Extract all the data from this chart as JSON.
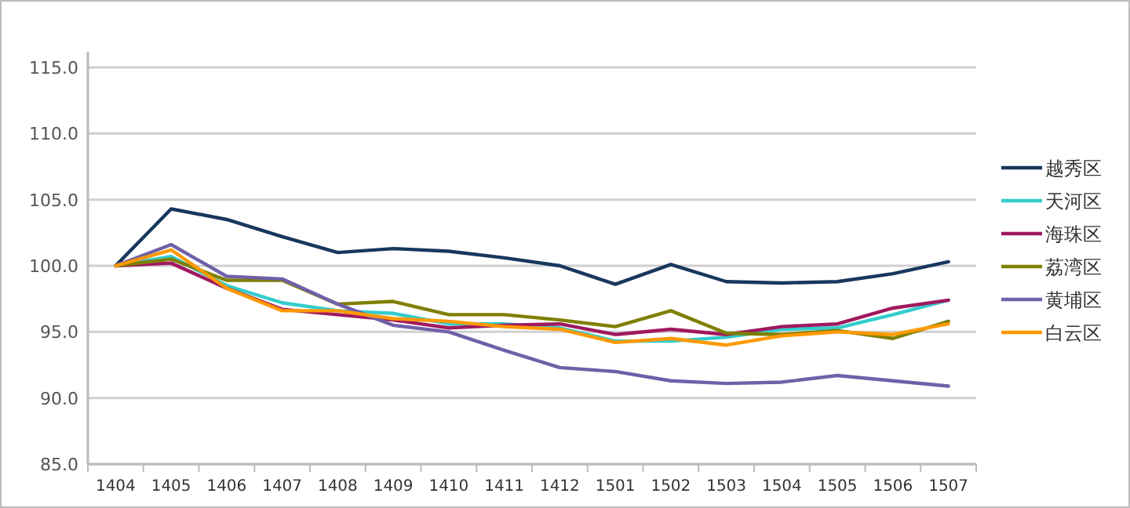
{
  "chart_data": {
    "type": "line",
    "categories": [
      "1404",
      "1405",
      "1406",
      "1407",
      "1408",
      "1409",
      "1410",
      "1411",
      "1412",
      "1501",
      "1502",
      "1503",
      "1504",
      "1505",
      "1506",
      "1507"
    ],
    "ylim": [
      85,
      115
    ],
    "yticks": [
      {
        "value": 85,
        "label": "85.0"
      },
      {
        "value": 90,
        "label": "90.0"
      },
      {
        "value": 95,
        "label": "95.0"
      },
      {
        "value": 100,
        "label": "100.0"
      },
      {
        "value": 105,
        "label": "105.0"
      },
      {
        "value": 110,
        "label": "110.0"
      },
      {
        "value": 115,
        "label": "115.0"
      }
    ],
    "grid": "y",
    "legend": "right",
    "marker": "none",
    "line_style": "solid",
    "series": [
      {
        "name": "越秀区",
        "color": "#17375e",
        "values": [
          100,
          104.3,
          103.5,
          102.2,
          101.0,
          101.3,
          101.1,
          100.6,
          100.0,
          98.6,
          100.1,
          98.8,
          98.7,
          98.8,
          99.4,
          100.3
        ]
      },
      {
        "name": "天河区",
        "color": "#33cccc",
        "values": [
          100,
          100.7,
          98.5,
          97.2,
          96.6,
          96.4,
          95.6,
          95.6,
          95.3,
          94.3,
          94.3,
          94.6,
          95.2,
          95.3,
          96.3,
          97.4
        ]
      },
      {
        "name": "海珠区",
        "color": "#a0195f",
        "values": [
          100,
          100.2,
          98.3,
          96.7,
          96.3,
          95.9,
          95.3,
          95.5,
          95.6,
          94.8,
          95.2,
          94.8,
          95.4,
          95.6,
          96.8,
          97.4
        ]
      },
      {
        "name": "荔湾区",
        "color": "#7f7f00",
        "values": [
          100,
          100.5,
          98.9,
          98.9,
          97.1,
          97.3,
          96.3,
          96.3,
          95.9,
          95.4,
          96.6,
          94.9,
          94.8,
          95.1,
          94.5,
          95.8
        ]
      },
      {
        "name": "黄埔区",
        "color": "#7060a8",
        "values": [
          100,
          101.6,
          99.2,
          99.0,
          97.1,
          95.5,
          95.0,
          93.6,
          92.3,
          92.0,
          91.3,
          91.1,
          91.2,
          91.7,
          91.3,
          90.9
        ]
      },
      {
        "name": "白云区",
        "color": "#ff9900",
        "values": [
          100,
          101.2,
          98.3,
          96.6,
          96.6,
          96.0,
          95.8,
          95.4,
          95.2,
          94.2,
          94.5,
          94.0,
          94.7,
          95.0,
          94.8,
          95.6
        ]
      }
    ]
  }
}
